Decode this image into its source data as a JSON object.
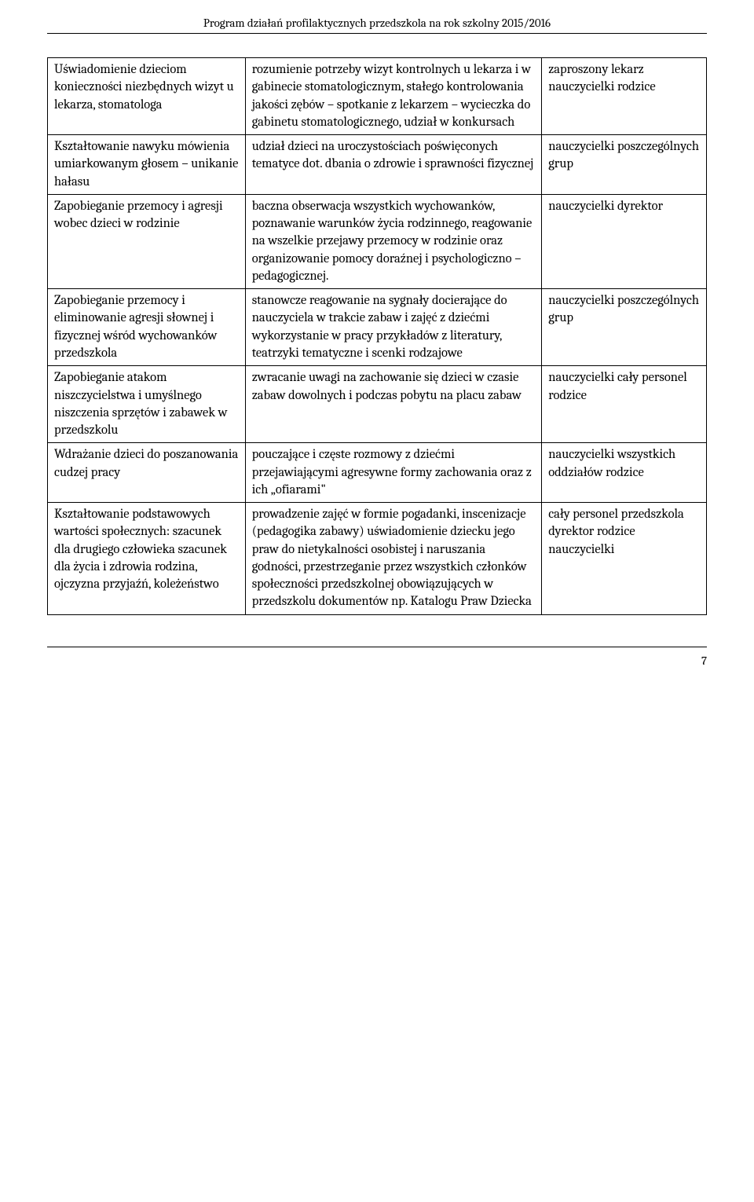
{
  "header": "Program działań profilaktycznych przedszkola na rok szkolny 2015/2016",
  "page_number": "7",
  "table": {
    "rows": [
      {
        "c1": "Uświadomienie dzieciom konieczności niezbędnych wizyt u lekarza, stomatologa",
        "c2": "rozumienie potrzeby wizyt kontrolnych u lekarza i w gabinecie stomatologicznym, stałego kontrolowania jakości zębów – spotkanie z lekarzem – wycieczka do gabinetu stomatologicznego, udział w konkursach",
        "c3": "zaproszony lekarz nauczycielki rodzice"
      },
      {
        "c1": "Kształtowanie nawyku mówienia umiarkowanym głosem – unikanie hałasu",
        "c2": "udział dzieci na uroczystościach poświęconych tematyce dot. dbania o zdrowie i sprawności fizycznej",
        "c3": "nauczycielki poszczególnych grup"
      },
      {
        "c1": "Zapobieganie przemocy i agresji wobec dzieci w rodzinie",
        "c2": "baczna obserwacja wszystkich wychowanków,\npoznawanie warunków życia rodzinnego, reagowanie na wszelkie przejawy przemocy w rodzinie oraz organizowanie pomocy doraźnej i psychologiczno – pedagogicznej.",
        "c3": "nauczycielki dyrektor"
      },
      {
        "c1": "Zapobieganie przemocy i eliminowanie agresji słownej i fizycznej wśród wychowanków przedszkola",
        "c2": "stanowcze reagowanie na sygnały docierające do nauczyciela w trakcie zabaw i zajęć z dziećmi\nwykorzystanie w pracy przykładów z literatury,\nteatrzyki tematyczne i scenki rodzajowe",
        "c3": "nauczycielki poszczególnych grup"
      },
      {
        "c1": "Zapobieganie atakom niszczycielstwa i umyślnego niszczenia sprzętów i zabawek w przedszkolu",
        "c2": "zwracanie uwagi na zachowanie się dzieci w czasie zabaw dowolnych i podczas pobytu na placu zabaw",
        "c3": "nauczycielki cały personel rodzice"
      },
      {
        "c1": "Wdrażanie dzieci do poszanowania cudzej pracy",
        "c2": "pouczające i częste rozmowy z dziećmi przejawiającymi agresywne formy zachowania oraz z ich „ofiarami\"",
        "c3": "nauczycielki wszystkich oddziałów rodzice"
      },
      {
        "c1": "Kształtowanie podstawowych wartości społecznych: szacunek dla drugiego człowieka\nszacunek dla życia i zdrowia\nrodzina, ojczyzna przyjaźń, koleżeństwo",
        "c2": "prowadzenie zajęć w formie pogadanki, inscenizacje (pedagogika zabawy) uświadomienie dziecku jego praw do nietykalności osobistej i naruszania godności,\nprzestrzeganie przez wszystkich członków społeczności przedszkolnej obowiązujących w przedszkolu dokumentów np. Katalogu Praw Dziecka",
        "c3": "cały personel przedszkola dyrektor rodzice nauczycielki"
      }
    ]
  }
}
